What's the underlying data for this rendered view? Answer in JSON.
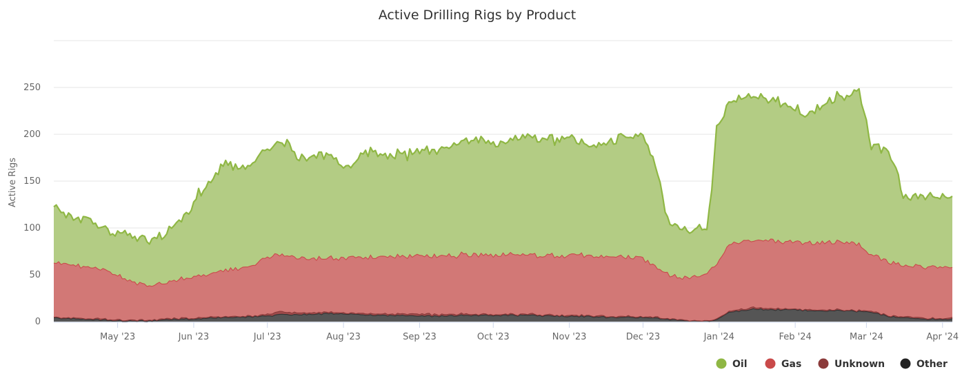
{
  "chart_data": {
    "type": "area",
    "stacked": true,
    "title": "Active Drilling Rigs by Product",
    "xlabel": "",
    "ylabel": "Active Rigs",
    "ylim": [
      0,
      300
    ],
    "yticks": [
      0,
      50,
      100,
      150,
      200,
      250
    ],
    "grid": true,
    "legend_position": "bottom-right",
    "x_unit": "days since 2023-04-05",
    "xlim": [
      0,
      366
    ],
    "xticks": [
      {
        "label": "May '23",
        "day": 26
      },
      {
        "label": "Jun '23",
        "day": 57
      },
      {
        "label": "Jul '23",
        "day": 87
      },
      {
        "label": "Aug '23",
        "day": 118
      },
      {
        "label": "Sep '23",
        "day": 149
      },
      {
        "label": "Oct '23",
        "day": 179
      },
      {
        "label": "Nov '23",
        "day": 210
      },
      {
        "label": "Dec '23",
        "day": 240
      },
      {
        "label": "Jan '24",
        "day": 271
      },
      {
        "label": "Feb '24",
        "day": 302
      },
      {
        "label": "Mar '24",
        "day": 331
      },
      {
        "label": "Apr '24",
        "day": 362
      }
    ],
    "series": [
      {
        "name": "Other",
        "color": "#333333",
        "fill": "#555555",
        "points": [
          [
            0,
            4
          ],
          [
            10,
            3
          ],
          [
            20,
            2
          ],
          [
            30,
            1
          ],
          [
            40,
            1
          ],
          [
            45,
            3
          ],
          [
            55,
            3
          ],
          [
            65,
            4
          ],
          [
            75,
            5
          ],
          [
            85,
            6
          ],
          [
            95,
            8
          ],
          [
            105,
            8
          ],
          [
            115,
            9
          ],
          [
            125,
            8
          ],
          [
            135,
            7
          ],
          [
            145,
            7
          ],
          [
            155,
            6
          ],
          [
            165,
            7
          ],
          [
            175,
            7
          ],
          [
            185,
            7
          ],
          [
            195,
            7
          ],
          [
            205,
            6
          ],
          [
            215,
            6
          ],
          [
            225,
            5
          ],
          [
            235,
            5
          ],
          [
            245,
            4
          ],
          [
            255,
            2
          ],
          [
            265,
            1
          ],
          [
            270,
            2
          ],
          [
            275,
            10
          ],
          [
            280,
            12
          ],
          [
            285,
            14
          ],
          [
            290,
            13
          ],
          [
            300,
            13
          ],
          [
            310,
            12
          ],
          [
            320,
            12
          ],
          [
            330,
            11
          ],
          [
            335,
            9
          ],
          [
            340,
            6
          ],
          [
            345,
            5
          ],
          [
            350,
            4
          ],
          [
            355,
            3
          ],
          [
            360,
            3
          ],
          [
            366,
            3
          ]
        ]
      },
      {
        "name": "Unknown",
        "color": "#8b3a3a",
        "fill": "#9e4b4b",
        "points": [
          [
            0,
            1
          ],
          [
            30,
            1
          ],
          [
            60,
            1
          ],
          [
            85,
            1
          ],
          [
            90,
            3
          ],
          [
            100,
            2
          ],
          [
            120,
            1
          ],
          [
            150,
            2
          ],
          [
            180,
            1
          ],
          [
            210,
            1
          ],
          [
            240,
            1
          ],
          [
            265,
            0
          ],
          [
            275,
            1
          ],
          [
            285,
            2
          ],
          [
            300,
            1
          ],
          [
            320,
            1
          ],
          [
            340,
            1
          ],
          [
            366,
            1
          ]
        ]
      },
      {
        "name": "Gas",
        "color": "#c94a4a",
        "fill": "#d27876",
        "points": [
          [
            0,
            58
          ],
          [
            10,
            56
          ],
          [
            20,
            52
          ],
          [
            27,
            47
          ],
          [
            32,
            40
          ],
          [
            38,
            38
          ],
          [
            45,
            38
          ],
          [
            52,
            42
          ],
          [
            60,
            44
          ],
          [
            65,
            47
          ],
          [
            70,
            50
          ],
          [
            75,
            51
          ],
          [
            80,
            54
          ],
          [
            85,
            58
          ],
          [
            90,
            62
          ],
          [
            95,
            60
          ],
          [
            105,
            58
          ],
          [
            115,
            58
          ],
          [
            125,
            60
          ],
          [
            135,
            62
          ],
          [
            145,
            62
          ],
          [
            155,
            62
          ],
          [
            165,
            63
          ],
          [
            175,
            64
          ],
          [
            185,
            64
          ],
          [
            195,
            63
          ],
          [
            205,
            64
          ],
          [
            215,
            64
          ],
          [
            225,
            63
          ],
          [
            235,
            64
          ],
          [
            240,
            62
          ],
          [
            245,
            54
          ],
          [
            250,
            47
          ],
          [
            255,
            45
          ],
          [
            260,
            45
          ],
          [
            265,
            50
          ],
          [
            270,
            60
          ],
          [
            275,
            72
          ],
          [
            285,
            72
          ],
          [
            295,
            72
          ],
          [
            305,
            72
          ],
          [
            315,
            72
          ],
          [
            322,
            72
          ],
          [
            328,
            70
          ],
          [
            332,
            60
          ],
          [
            338,
            58
          ],
          [
            345,
            56
          ],
          [
            355,
            55
          ],
          [
            362,
            55
          ],
          [
            366,
            55
          ]
        ]
      },
      {
        "name": "Oil",
        "color": "#8fb744",
        "fill": "#b3cc84",
        "points": [
          [
            0,
            60
          ],
          [
            5,
            52
          ],
          [
            10,
            50
          ],
          [
            15,
            50
          ],
          [
            20,
            45
          ],
          [
            25,
            42
          ],
          [
            28,
            48
          ],
          [
            32,
            44
          ],
          [
            36,
            50
          ],
          [
            40,
            46
          ],
          [
            45,
            52
          ],
          [
            48,
            55
          ],
          [
            52,
            62
          ],
          [
            56,
            75
          ],
          [
            58,
            85
          ],
          [
            62,
            95
          ],
          [
            66,
            105
          ],
          [
            70,
            112
          ],
          [
            75,
            110
          ],
          [
            80,
            105
          ],
          [
            85,
            112
          ],
          [
            90,
            118
          ],
          [
            95,
            120
          ],
          [
            100,
            108
          ],
          [
            105,
            108
          ],
          [
            110,
            110
          ],
          [
            115,
            105
          ],
          [
            120,
            95
          ],
          [
            125,
            110
          ],
          [
            130,
            112
          ],
          [
            135,
            108
          ],
          [
            140,
            108
          ],
          [
            145,
            108
          ],
          [
            150,
            110
          ],
          [
            155,
            112
          ],
          [
            160,
            115
          ],
          [
            165,
            118
          ],
          [
            170,
            120
          ],
          [
            175,
            122
          ],
          [
            180,
            118
          ],
          [
            185,
            120
          ],
          [
            190,
            125
          ],
          [
            195,
            128
          ],
          [
            200,
            125
          ],
          [
            205,
            122
          ],
          [
            210,
            125
          ],
          [
            215,
            120
          ],
          [
            220,
            118
          ],
          [
            225,
            120
          ],
          [
            230,
            125
          ],
          [
            235,
            130
          ],
          [
            240,
            128
          ],
          [
            243,
            115
          ],
          [
            246,
            100
          ],
          [
            250,
            55
          ],
          [
            254,
            52
          ],
          [
            258,
            50
          ],
          [
            262,
            52
          ],
          [
            266,
            50
          ],
          [
            268,
            85
          ],
          [
            270,
            145
          ],
          [
            273,
            145
          ],
          [
            276,
            150
          ],
          [
            280,
            155
          ],
          [
            285,
            152
          ],
          [
            290,
            152
          ],
          [
            295,
            148
          ],
          [
            300,
            145
          ],
          [
            305,
            138
          ],
          [
            310,
            140
          ],
          [
            315,
            150
          ],
          [
            320,
            155
          ],
          [
            325,
            160
          ],
          [
            328,
            160
          ],
          [
            330,
            150
          ],
          [
            333,
            115
          ],
          [
            336,
            115
          ],
          [
            340,
            118
          ],
          [
            343,
            100
          ],
          [
            346,
            75
          ],
          [
            350,
            72
          ],
          [
            355,
            78
          ],
          [
            360,
            75
          ],
          [
            366,
            78
          ]
        ]
      }
    ]
  }
}
